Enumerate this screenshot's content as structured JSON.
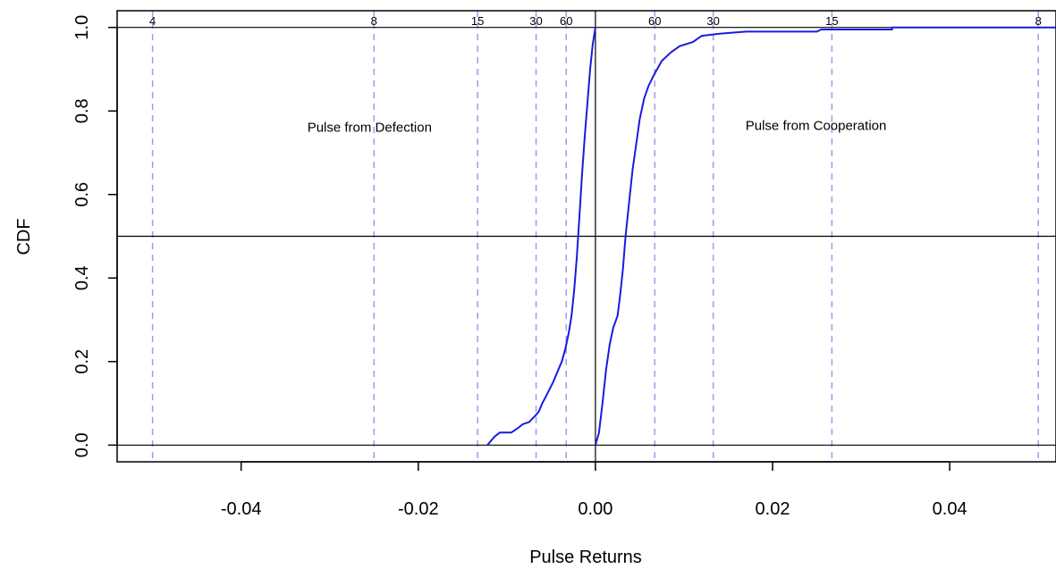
{
  "chart_data": {
    "type": "line",
    "title": "",
    "xlabel": "Pulse Returns",
    "ylabel": "CDF",
    "xlim": [
      -0.054,
      0.052
    ],
    "ylim": [
      -0.04,
      1.04
    ],
    "xticks": [
      {
        "value": -0.04,
        "label": "-0.04"
      },
      {
        "value": -0.02,
        "label": "-0.02"
      },
      {
        "value": 0.0,
        "label": "0.00"
      },
      {
        "value": 0.02,
        "label": "0.02"
      },
      {
        "value": 0.04,
        "label": "0.04"
      }
    ],
    "yticks": [
      {
        "value": 0.0,
        "label": "0.0"
      },
      {
        "value": 0.2,
        "label": "0.2"
      },
      {
        "value": 0.4,
        "label": "0.4"
      },
      {
        "value": 0.6,
        "label": "0.6"
      },
      {
        "value": 0.8,
        "label": "0.8"
      },
      {
        "value": 1.0,
        "label": "1.0"
      }
    ],
    "reference_lines": {
      "horizontal": [
        0.0,
        0.5,
        1.0
      ],
      "vertical": [
        0.0
      ]
    },
    "period_lines": [
      {
        "x": -0.05,
        "label": "4"
      },
      {
        "x": -0.025,
        "label": "8"
      },
      {
        "x": -0.0133,
        "label": "15"
      },
      {
        "x": -0.0067,
        "label": "30"
      },
      {
        "x": -0.0033,
        "label": "60"
      },
      {
        "x": 0.0067,
        "label": "60"
      },
      {
        "x": 0.0133,
        "label": "30"
      },
      {
        "x": 0.0267,
        "label": "15"
      },
      {
        "x": 0.05,
        "label": "8"
      }
    ],
    "annotations": [
      {
        "text": "Pulse from Defection",
        "x": -0.0255,
        "y": 0.75
      },
      {
        "text": "Pulse from Cooperation",
        "x": 0.0249,
        "y": 0.755
      }
    ],
    "series": [
      {
        "color": "#1a1ae0",
        "points": [
          [
            -0.0122,
            0.0
          ],
          [
            -0.0118,
            0.01
          ],
          [
            -0.0114,
            0.02
          ],
          [
            -0.0108,
            0.03
          ],
          [
            -0.0095,
            0.03
          ],
          [
            -0.0088,
            0.04
          ],
          [
            -0.0082,
            0.05
          ],
          [
            -0.0075,
            0.055
          ],
          [
            -0.0068,
            0.07
          ],
          [
            -0.0064,
            0.08
          ],
          [
            -0.006,
            0.1
          ],
          [
            -0.0055,
            0.12
          ],
          [
            -0.0048,
            0.15
          ],
          [
            -0.0042,
            0.18
          ],
          [
            -0.0038,
            0.2
          ],
          [
            -0.0034,
            0.23
          ],
          [
            -0.003,
            0.27
          ],
          [
            -0.0027,
            0.31
          ],
          [
            -0.0024,
            0.37
          ],
          [
            -0.0021,
            0.45
          ],
          [
            -0.0018,
            0.55
          ],
          [
            -0.0015,
            0.65
          ],
          [
            -0.0012,
            0.74
          ],
          [
            -0.0009,
            0.82
          ],
          [
            -0.0006,
            0.9
          ],
          [
            -0.0003,
            0.96
          ],
          [
            0.0,
            1.0
          ]
        ]
      },
      {
        "color": "#1a1ae0",
        "points": [
          [
            0.0,
            0.0
          ],
          [
            0.0004,
            0.03
          ],
          [
            0.0008,
            0.1
          ],
          [
            0.0012,
            0.18
          ],
          [
            0.0016,
            0.24
          ],
          [
            0.002,
            0.28
          ],
          [
            0.0025,
            0.31
          ],
          [
            0.0028,
            0.36
          ],
          [
            0.0031,
            0.42
          ],
          [
            0.0034,
            0.5
          ],
          [
            0.0038,
            0.58
          ],
          [
            0.0042,
            0.66
          ],
          [
            0.0046,
            0.72
          ],
          [
            0.005,
            0.78
          ],
          [
            0.0055,
            0.83
          ],
          [
            0.006,
            0.86
          ],
          [
            0.0067,
            0.89
          ],
          [
            0.0075,
            0.92
          ],
          [
            0.0085,
            0.94
          ],
          [
            0.0095,
            0.955
          ],
          [
            0.011,
            0.965
          ],
          [
            0.012,
            0.98
          ],
          [
            0.014,
            0.985
          ],
          [
            0.017,
            0.99
          ],
          [
            0.025,
            0.99
          ],
          [
            0.0255,
            0.995
          ],
          [
            0.0335,
            0.995
          ],
          [
            0.0335,
            1.0
          ],
          [
            0.052,
            1.0
          ]
        ]
      }
    ]
  }
}
